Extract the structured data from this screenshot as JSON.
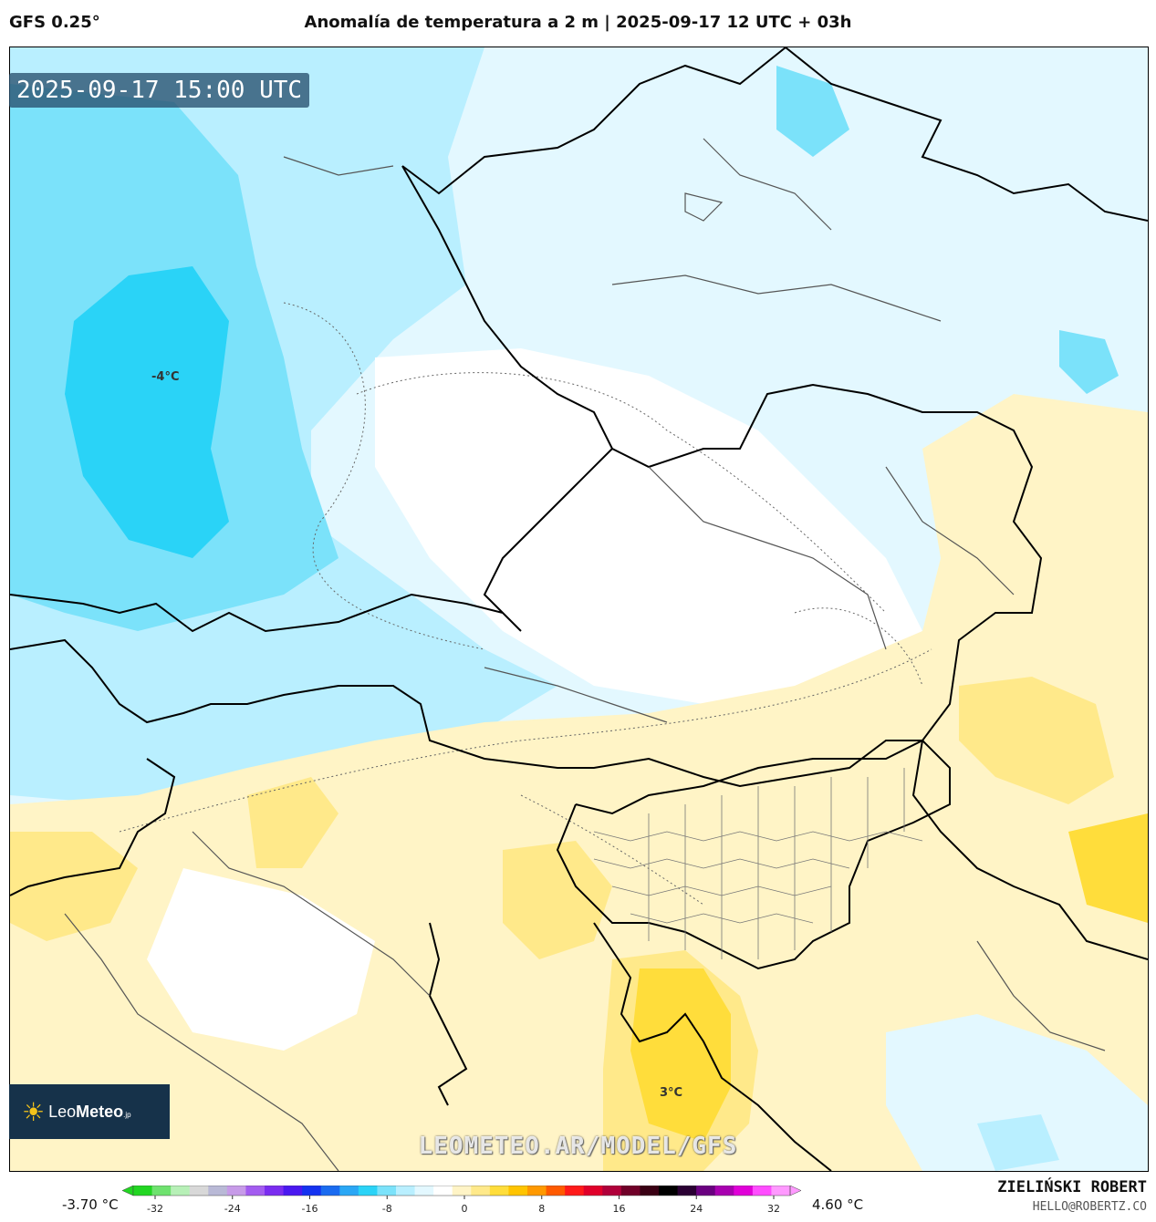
{
  "header": {
    "model": "GFS 0.25°",
    "title": "Anomalía de temperatura a 2 m | 2025-09-17 12 UTC + 03h"
  },
  "map": {
    "valid_time": "2025-09-17 15:00 UTC",
    "labels": [
      {
        "text": "-4°C"
      },
      {
        "text": "3°C"
      }
    ],
    "watermark": "LEOMETEO.AR/MODEL/GFS"
  },
  "logo": {
    "brand_light": "Leo",
    "brand_bold": "Meteo",
    "brand_suffix": ".jp",
    "icon": "sun-icon"
  },
  "colorbar": {
    "min_label": "-3.70 °C",
    "max_label": "4.60 °C",
    "ticks": [
      "-32",
      "-24",
      "-16",
      "-8",
      "0",
      "8",
      "16",
      "24",
      "32"
    ],
    "colors": [
      "#22d622",
      "#6fe26f",
      "#b7f0b7",
      "#d8d8d8",
      "#b9b9d6",
      "#c79be8",
      "#a35cf0",
      "#7a2cf0",
      "#4a18f0",
      "#1432f0",
      "#1a6bf0",
      "#2aa7f5",
      "#2ad3f7",
      "#7be2fa",
      "#b9efff",
      "#e3f8ff",
      "#ffffff",
      "#fff4c6",
      "#ffe98a",
      "#ffdd3b",
      "#ffc400",
      "#ff9900",
      "#ff5a00",
      "#ff1a1a",
      "#e0002a",
      "#b0003a",
      "#700028",
      "#3a0014",
      "#000000",
      "#2a0033",
      "#6a0080",
      "#a800b0",
      "#e000d8",
      "#ff4dff",
      "#ff99ff"
    ],
    "accent_cold": "#18d8f8",
    "accent_warm": "#ffd21a"
  },
  "footer": {
    "author": "ZIELIŃSKI ROBERT",
    "email": "HELLO@ROBERTZ.CO"
  }
}
